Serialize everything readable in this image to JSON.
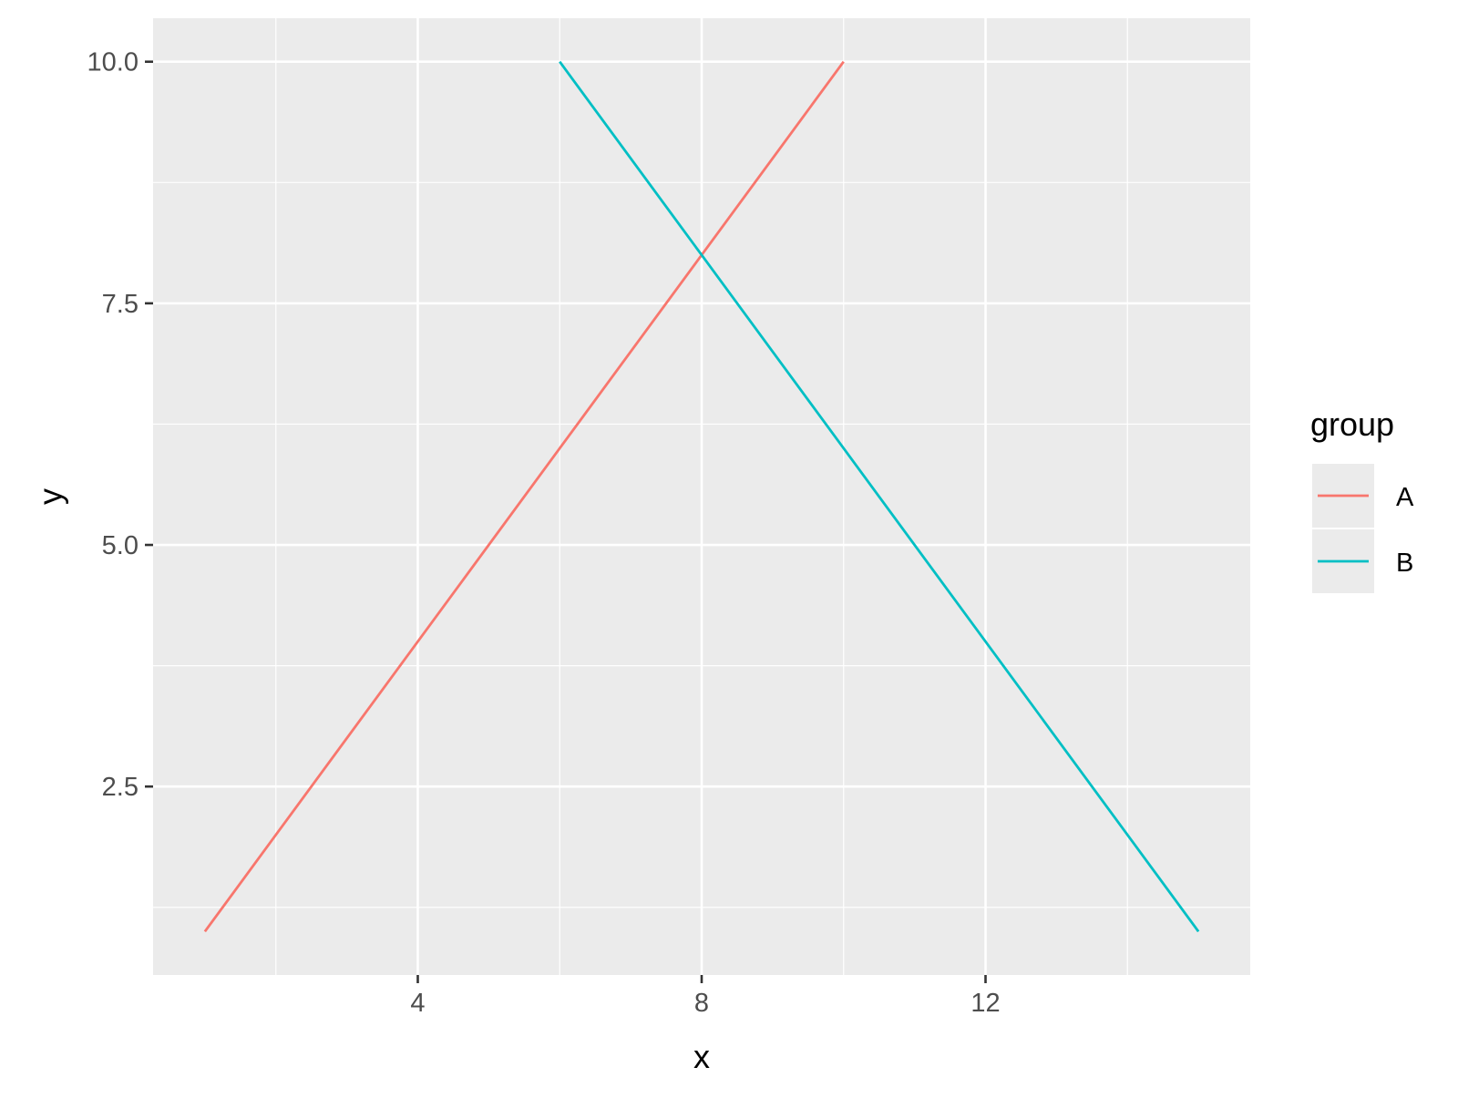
{
  "chart_data": {
    "type": "line",
    "title": "",
    "xlabel": "x",
    "ylabel": "y",
    "xlim": [
      0.27,
      15.73
    ],
    "ylim": [
      0.55,
      10.45
    ],
    "x_ticks": [
      4,
      8,
      12
    ],
    "x_tick_labels": [
      "4",
      "8",
      "12"
    ],
    "x_minor_ticks": [
      2,
      6,
      10,
      14
    ],
    "y_ticks": [
      2.5,
      5.0,
      7.5,
      10.0
    ],
    "y_tick_labels": [
      "2.5",
      "5.0",
      "7.5",
      "10.0"
    ],
    "y_minor_ticks": [
      1.25,
      3.75,
      6.25,
      8.75
    ],
    "grid": true,
    "legend": {
      "title": "group",
      "position": "right"
    },
    "series": [
      {
        "name": "A",
        "color": "#F8766D",
        "points": [
          {
            "x": 1,
            "y": 1
          },
          {
            "x": 2,
            "y": 2
          },
          {
            "x": 4,
            "y": 4
          },
          {
            "x": 6,
            "y": 6
          },
          {
            "x": 8,
            "y": 8
          },
          {
            "x": 10,
            "y": 10
          }
        ]
      },
      {
        "name": "B",
        "color": "#00BFC4",
        "points": [
          {
            "x": 6,
            "y": 10
          },
          {
            "x": 8,
            "y": 8
          },
          {
            "x": 10,
            "y": 6
          },
          {
            "x": 12,
            "y": 4
          },
          {
            "x": 14,
            "y": 2
          },
          {
            "x": 15,
            "y": 1
          }
        ]
      }
    ]
  },
  "style": {
    "panel_background": "#EBEBEB",
    "grid_color": "#FFFFFF",
    "tick_color": "#333333",
    "legend_key_background": "#EBEBEB"
  }
}
